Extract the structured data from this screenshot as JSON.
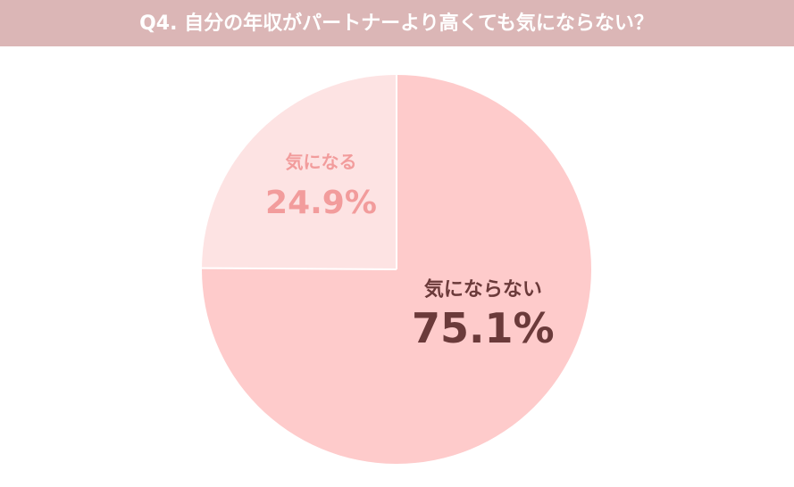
{
  "chart_data": {
    "type": "pie",
    "title": "Q4. 自分の年収がパートナーより高くても気にならない？",
    "categories": [
      "気にならない",
      "気になる"
    ],
    "values": [
      75.1,
      24.9
    ],
    "value_labels": [
      "75.1%",
      "24.9%"
    ],
    "colors": [
      "#fecbcb",
      "#fde3e3"
    ],
    "label_colors": [
      "#6b3a3a",
      "#f29c9c"
    ],
    "start_angle": 0,
    "direction": "clockwise"
  }
}
